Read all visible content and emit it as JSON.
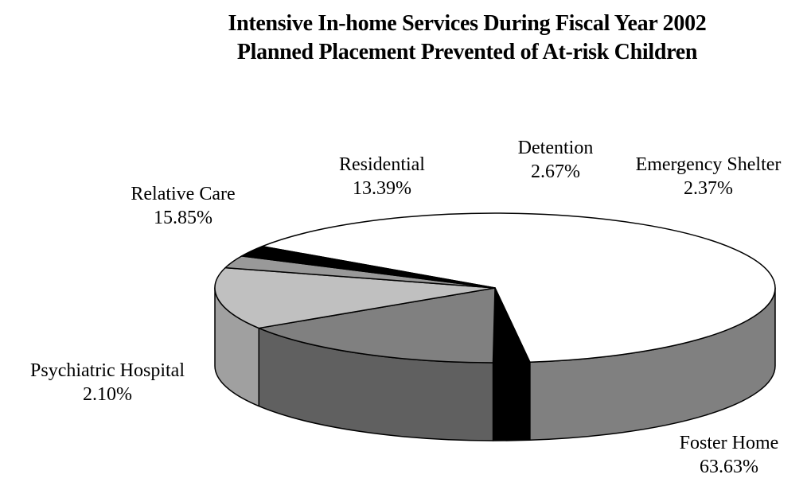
{
  "chart_data": {
    "type": "pie",
    "title": "Intensive In-home Services During Fiscal Year 2002",
    "subtitle": "Planned Placement Prevented of At-risk Children",
    "slices": [
      {
        "label": "Foster Home",
        "value": 63.63,
        "value_label": "63.63%",
        "color": "#ffffff",
        "side_color": "#808080"
      },
      {
        "label": "Psychiatric Hospital",
        "value": 2.1,
        "value_label": "2.10%",
        "color": "#000000",
        "side_color": "#000000"
      },
      {
        "label": "Relative Care",
        "value": 15.85,
        "value_label": "15.85%",
        "color": "#808080",
        "side_color": "#606060"
      },
      {
        "label": "Residential",
        "value": 13.39,
        "value_label": "13.39%",
        "color": "#c0c0c0",
        "side_color": "#a0a0a0"
      },
      {
        "label": "Detention",
        "value": 2.67,
        "value_label": "2.67%",
        "color": "#999999",
        "side_color": "#777777"
      },
      {
        "label": "Emergency Shelter",
        "value": 2.37,
        "value_label": "2.37%",
        "color": "#000000",
        "side_color": "#000000"
      }
    ]
  }
}
